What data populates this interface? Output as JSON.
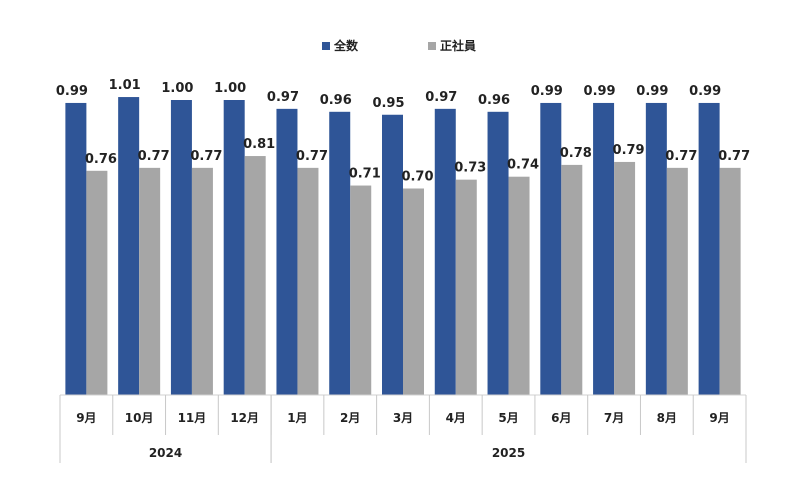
{
  "chart_data": {
    "type": "bar",
    "title": "",
    "xlabel": "",
    "ylabel": "",
    "ylim": [
      0,
      1.34
    ],
    "grid": false,
    "legend_position": "top-center",
    "categories": [
      "9月",
      "10月",
      "11月",
      "12月",
      "1月",
      "2月",
      "3月",
      "4月",
      "5月",
      "6月",
      "7月",
      "8月",
      "9月"
    ],
    "year_groups": [
      {
        "label": "2024",
        "count": 4
      },
      {
        "label": "2025",
        "count": 9
      }
    ],
    "series": [
      {
        "name": "全数",
        "color": "#2f5597",
        "values": [
          0.99,
          1.01,
          1.0,
          1.0,
          0.97,
          0.96,
          0.95,
          0.97,
          0.96,
          0.99,
          0.99,
          0.99,
          0.99
        ]
      },
      {
        "name": "正社員",
        "color": "#a6a6a6",
        "values": [
          0.76,
          0.77,
          0.77,
          0.81,
          0.77,
          0.71,
          0.7,
          0.73,
          0.74,
          0.78,
          0.79,
          0.77,
          0.77
        ]
      }
    ]
  }
}
